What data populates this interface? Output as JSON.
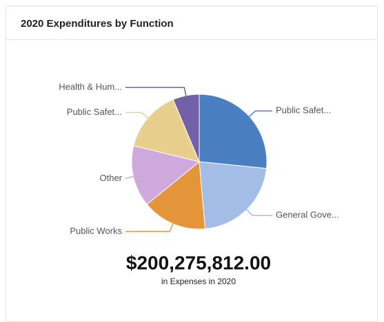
{
  "chart_data": {
    "type": "pie",
    "title": "2020 Expenditures by Function",
    "categories": [
      "Public Safet...",
      "General Gove...",
      "Public Works",
      "Other",
      "Public Safet...",
      "Health & Hum..."
    ],
    "values": [
      26.6,
      22,
      15.5,
      14.7,
      14.9,
      6.3
    ],
    "colors": [
      "#4a7fc1",
      "#a4bde6",
      "#e6963a",
      "#cfa9dc",
      "#e8cf8d",
      "#7260a8"
    ],
    "total": "$200,275,812.00",
    "total_label": "in Expenses in 2020"
  }
}
